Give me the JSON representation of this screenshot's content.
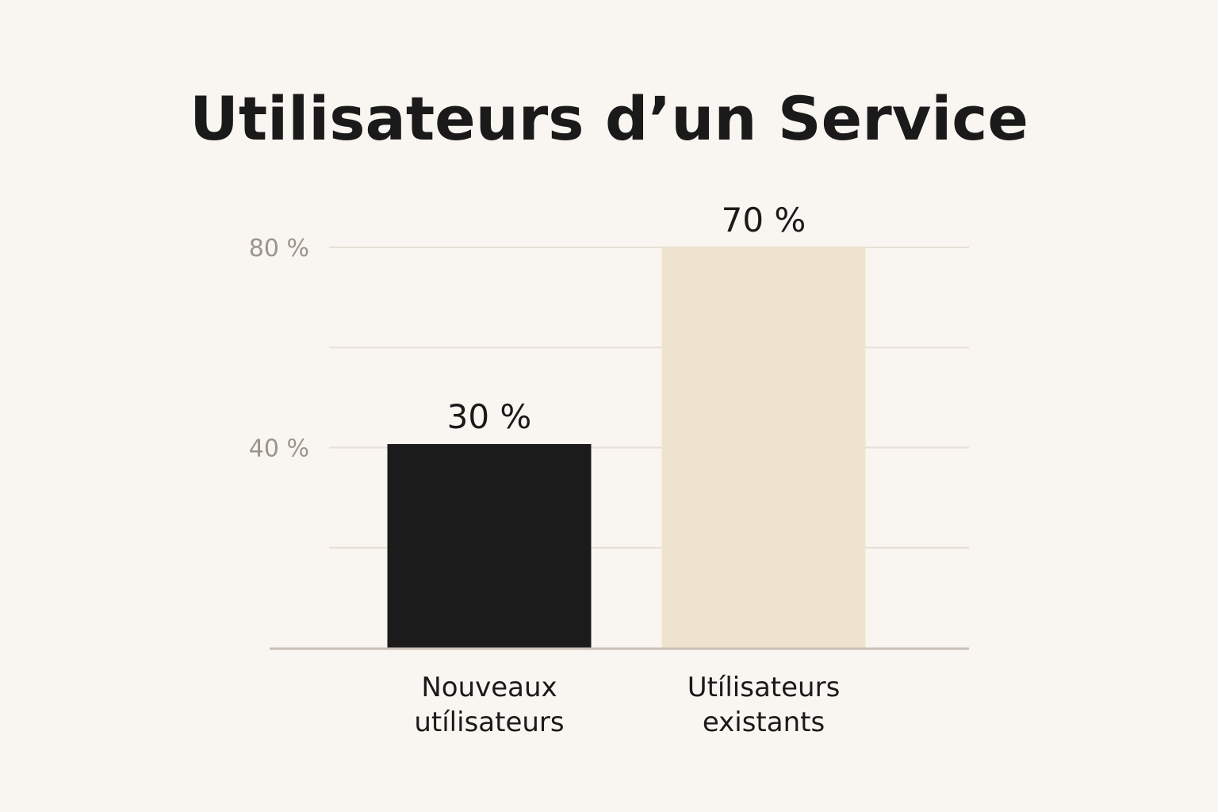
{
  "chart_data": {
    "type": "bar",
    "title": "Utilisateurs d’un Service",
    "categories": [
      [
        "Nouveaux",
        "utı́lisateurs"
      ],
      [
        "Utı́lisateurs",
        "existants"
      ]
    ],
    "values": [
      30,
      70
    ],
    "value_labels": [
      "30 %",
      "70 %"
    ],
    "yticks": [
      {
        "value": 40,
        "label": "40 %"
      },
      {
        "value": 80,
        "label": "80 %"
      }
    ],
    "gridlines": [
      0,
      20,
      40,
      60,
      80
    ],
    "ylim": [
      0,
      80
    ],
    "grid": true,
    "legend": "none",
    "colors": {
      "bar_1": "#1b1b1b",
      "bar_2": "#efe3d0",
      "grid": "#e7dfd5",
      "axis": "#c8c0b6",
      "tick_text": "#9a958d",
      "text": "#1a1a1a",
      "background": "#f9f5f0"
    }
  }
}
